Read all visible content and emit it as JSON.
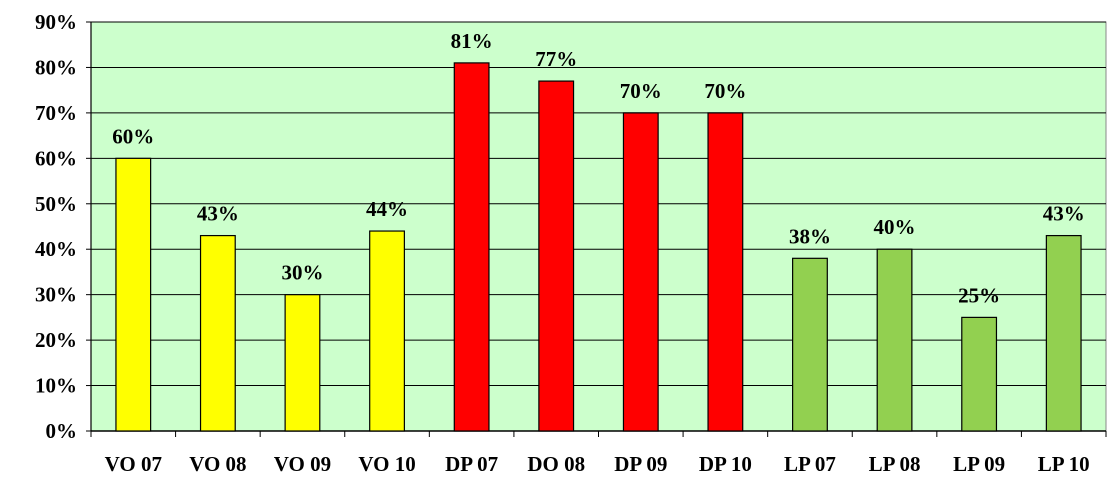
{
  "chart_data": {
    "type": "bar",
    "categories": [
      "VO 07",
      "VO 08",
      "VO 09",
      "VO 10",
      "DP 07",
      "DO 08",
      "DP 09",
      "DP 10",
      "LP 07",
      "LP 08",
      "LP 09",
      "LP 10"
    ],
    "values": [
      60,
      43,
      30,
      44,
      81,
      77,
      70,
      70,
      38,
      40,
      25,
      43
    ],
    "data_labels": [
      "60%",
      "43%",
      "30%",
      "44%",
      "81%",
      "77%",
      "70%",
      "70%",
      "38%",
      "40%",
      "25%",
      "43%"
    ],
    "bar_colors": [
      "#ffff00",
      "#ffff00",
      "#ffff00",
      "#ffff00",
      "#ff0000",
      "#ff0000",
      "#ff0000",
      "#ff0000",
      "#92d050",
      "#92d050",
      "#92d050",
      "#92d050"
    ],
    "title": "",
    "xlabel": "",
    "ylabel": "",
    "ylim": [
      0,
      90
    ],
    "yticks": [
      0,
      10,
      20,
      30,
      40,
      50,
      60,
      70,
      80,
      90
    ],
    "ytick_labels": [
      "0%",
      "10%",
      "20%",
      "30%",
      "40%",
      "50%",
      "60%",
      "70%",
      "80%",
      "90%"
    ],
    "grid": true,
    "legend": false,
    "plot_background": "#ccffcc"
  }
}
